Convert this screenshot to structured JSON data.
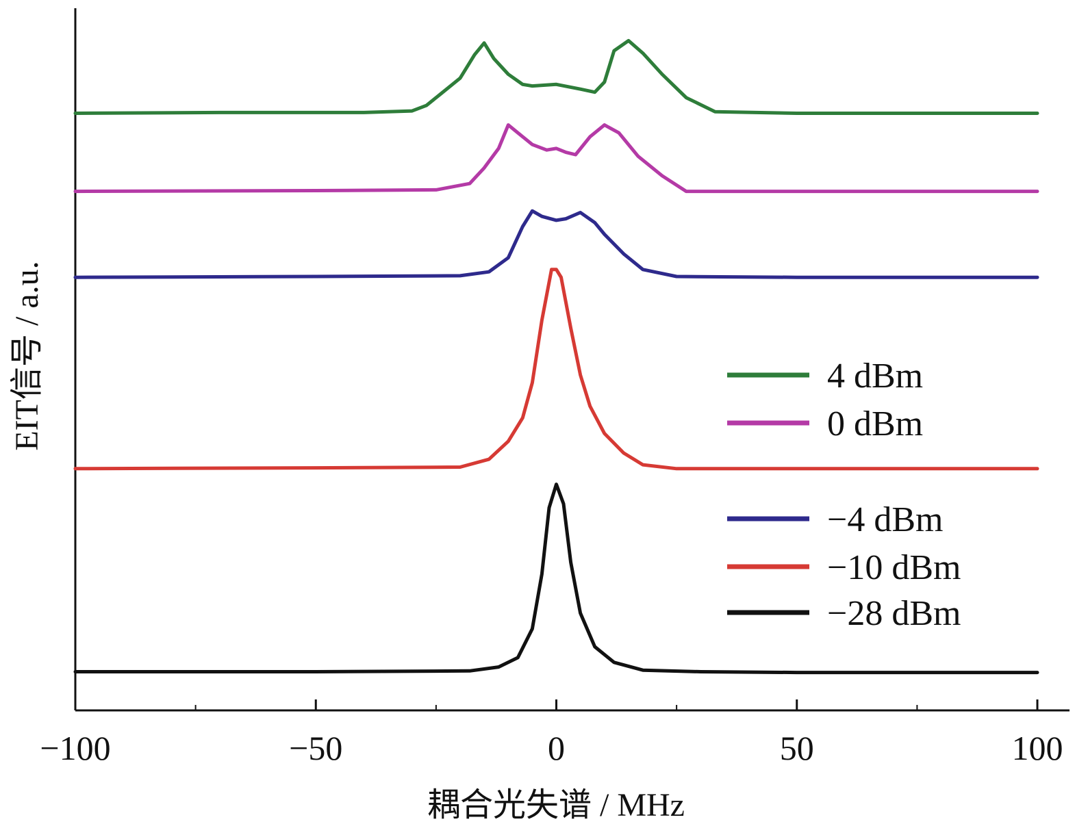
{
  "chart_data": {
    "type": "line",
    "xlabel": "耦合光失谱 / MHz",
    "ylabel": "EIT信号 / a.u.",
    "xlim": [
      -100,
      100
    ],
    "x_ticks": [
      -100,
      -50,
      0,
      50,
      100
    ],
    "x_tick_labels": [
      "−100",
      "−50",
      "0",
      "50",
      "100"
    ],
    "y_ticks_shown": false,
    "grid": false,
    "legend_position": "right",
    "series": [
      {
        "name": "4 dBm",
        "color": "#2e7d3a",
        "baseline": 8.95,
        "x": [
          -100,
          -70,
          -40,
          -30,
          -27,
          -24,
          -20,
          -17,
          -15,
          -13,
          -10,
          -7,
          -5,
          0,
          5,
          8,
          10,
          12,
          15,
          18,
          22,
          27,
          33,
          50,
          100
        ],
        "y": [
          8.95,
          8.96,
          8.96,
          8.98,
          9.05,
          9.2,
          9.4,
          9.7,
          9.85,
          9.65,
          9.45,
          9.32,
          9.3,
          9.32,
          9.26,
          9.22,
          9.35,
          9.75,
          9.88,
          9.72,
          9.45,
          9.15,
          8.97,
          8.95,
          8.95
        ]
      },
      {
        "name": "0 dBm",
        "color": "#b43aa6",
        "baseline": 7.95,
        "x": [
          -100,
          -50,
          -25,
          -18,
          -15,
          -12,
          -10,
          -8,
          -5,
          -2,
          0,
          2,
          4,
          7,
          10,
          13,
          17,
          22,
          27,
          50,
          100
        ],
        "y": [
          7.95,
          7.96,
          7.97,
          8.05,
          8.25,
          8.5,
          8.8,
          8.7,
          8.55,
          8.48,
          8.5,
          8.45,
          8.42,
          8.65,
          8.8,
          8.7,
          8.4,
          8.15,
          7.95,
          7.95,
          7.95
        ]
      },
      {
        "name": "−4 dBm",
        "color": "#2e2a8c",
        "baseline": 6.85,
        "x": [
          -100,
          -50,
          -20,
          -14,
          -10,
          -7,
          -5,
          -3,
          0,
          2,
          5,
          8,
          10,
          14,
          18,
          25,
          50,
          100
        ],
        "y": [
          6.85,
          6.86,
          6.87,
          6.92,
          7.1,
          7.5,
          7.7,
          7.63,
          7.58,
          7.6,
          7.68,
          7.55,
          7.4,
          7.15,
          6.95,
          6.86,
          6.85,
          6.85
        ]
      },
      {
        "name": "−10 dBm",
        "color": "#d63a34",
        "baseline": 4.4,
        "x": [
          -100,
          -50,
          -20,
          -14,
          -10,
          -7,
          -5,
          -3,
          -1,
          0,
          1,
          3,
          5,
          7,
          10,
          14,
          18,
          25,
          50,
          100
        ],
        "y": [
          4.4,
          4.41,
          4.42,
          4.52,
          4.75,
          5.05,
          5.5,
          6.3,
          6.95,
          6.95,
          6.85,
          6.2,
          5.6,
          5.2,
          4.85,
          4.6,
          4.45,
          4.4,
          4.4,
          4.4
        ]
      },
      {
        "name": "−28 dBm",
        "color": "#111111",
        "baseline": 1.8,
        "x": [
          -100,
          -50,
          -18,
          -12,
          -8,
          -5,
          -3,
          -1.5,
          0,
          1.5,
          3,
          5,
          8,
          12,
          18,
          30,
          50,
          100
        ],
        "y": [
          1.8,
          1.8,
          1.81,
          1.86,
          1.98,
          2.35,
          3.05,
          3.9,
          4.2,
          3.95,
          3.2,
          2.55,
          2.12,
          1.92,
          1.82,
          1.8,
          1.79,
          1.79
        ]
      }
    ]
  }
}
